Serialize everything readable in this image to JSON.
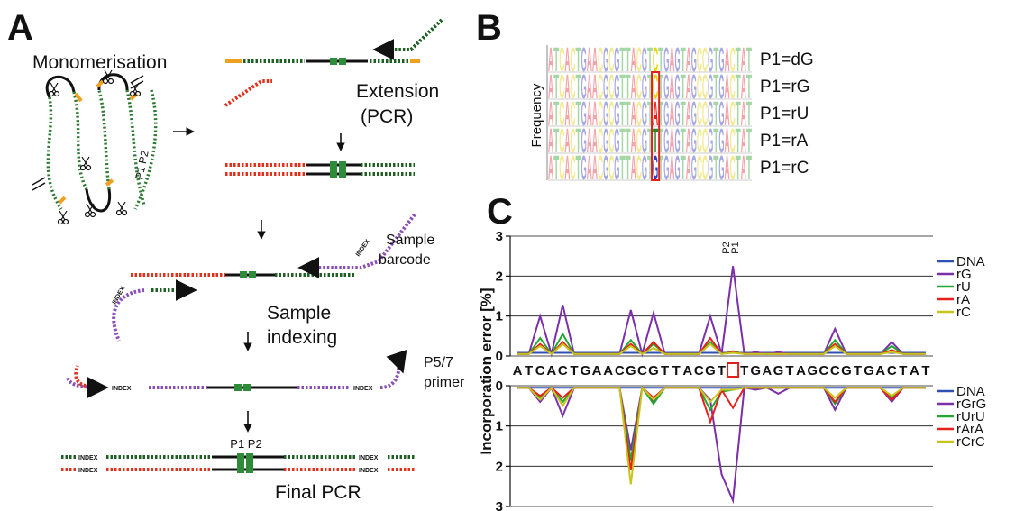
{
  "panel_labels": [
    "A",
    "B",
    "C"
  ],
  "panel_a": {
    "monomerisation": "Monomerisation",
    "p1p2_loop": "P1 P2",
    "extension": "Extension",
    "pcr": "(PCR)",
    "sample_barcode": [
      "Sample",
      "barcode"
    ],
    "index_labels": [
      "INDEX",
      "INDEX",
      "INDEX",
      "INDEX",
      "INDEX",
      "INDEX",
      "INDEX",
      "INDEX"
    ],
    "sample_indexing": [
      "Sample",
      "indexing"
    ],
    "primer": [
      "P5/7",
      "primer"
    ],
    "p1p2_final": "P1 P2",
    "final_pcr": "Final PCR"
  },
  "panel_b": {
    "y_label": "Frequency",
    "rows": [
      {
        "label": "P1=dG",
        "sequence": "ATCACTGAACGCGTTACGTCTGAGTAGCCGTGACTAT"
      },
      {
        "label": "P1=rG",
        "sequence": "ATCACTGAACGCGTTACGTCTGAGTAGCCGTGACTAT"
      },
      {
        "label": "P1=rU",
        "sequence": "ATCACTGAACGCGTTACGTATGAGTAGCCGTGACTAT"
      },
      {
        "label": "P1=rA",
        "sequence": "ATCACTGAACGCGTTACGTTTGAGTAGCCGTGACTAT"
      },
      {
        "label": "P1=rC",
        "sequence": "ATCACTGAACGCGTTACGTGTGAGTAGCCGTGACTAT"
      }
    ]
  },
  "chart_data": [
    {
      "type": "line",
      "ylabel": "Incorporation error [%]",
      "annotations": [
        "P2",
        "P1"
      ],
      "categories": [
        "A",
        "T",
        "C",
        "A",
        "C",
        "T",
        "G",
        "A",
        "A",
        "C",
        "G",
        "C",
        "G",
        "T",
        "T",
        "A",
        "C",
        "G",
        "T",
        null,
        "T",
        "G",
        "A",
        "G",
        "T",
        "A",
        "G",
        "C",
        "C",
        "G",
        "T",
        "G",
        "A",
        "C",
        "T",
        "A",
        "T"
      ],
      "ylim": [
        0,
        3
      ],
      "yticks": [
        0,
        1,
        2,
        3
      ],
      "grid": true,
      "series": [
        {
          "name": "DNA",
          "color": "#2f4fb5",
          "values": [
            0.08,
            0.08,
            0.08,
            0.08,
            0.08,
            0.08,
            0.08,
            0.08,
            0.08,
            0.08,
            0.08,
            0.08,
            0.08,
            0.08,
            0.08,
            0.08,
            0.08,
            0.08,
            0.08,
            0.08,
            0.08,
            0.08,
            0.08,
            0.08,
            0.08,
            0.08,
            0.08,
            0.08,
            0.08,
            0.08,
            0.08,
            0.08,
            0.08,
            0.08,
            0.08,
            0.08,
            0.08
          ]
        },
        {
          "name": "rG",
          "color": "#7b2fa8",
          "values": [
            0.05,
            0.05,
            1.0,
            0.05,
            1.28,
            0.05,
            0.05,
            0.05,
            0.05,
            0.05,
            1.15,
            0.05,
            1.08,
            0.05,
            0.05,
            0.05,
            0.05,
            1.0,
            0.05,
            2.25,
            0.05,
            0.1,
            0.05,
            0.1,
            0.05,
            0.05,
            0.05,
            0.05,
            0.68,
            0.05,
            0.05,
            0.05,
            0.05,
            0.35,
            0.05,
            0.05,
            0.05
          ]
        },
        {
          "name": "rU",
          "color": "#22a830",
          "values": [
            0.05,
            0.05,
            0.45,
            0.05,
            0.55,
            0.05,
            0.05,
            0.05,
            0.05,
            0.05,
            0.4,
            0.05,
            0.3,
            0.05,
            0.05,
            0.05,
            0.05,
            0.35,
            0.05,
            0.12,
            0.05,
            0.05,
            0.05,
            0.05,
            0.05,
            0.05,
            0.05,
            0.05,
            0.4,
            0.05,
            0.05,
            0.05,
            0.05,
            0.25,
            0.05,
            0.05,
            0.05
          ]
        },
        {
          "name": "rA",
          "color": "#e8201c",
          "values": [
            0.05,
            0.05,
            0.3,
            0.05,
            0.35,
            0.05,
            0.05,
            0.05,
            0.05,
            0.05,
            0.3,
            0.05,
            0.35,
            0.05,
            0.05,
            0.05,
            0.05,
            0.45,
            0.05,
            0.1,
            0.05,
            0.05,
            0.05,
            0.05,
            0.05,
            0.05,
            0.05,
            0.05,
            0.3,
            0.05,
            0.05,
            0.05,
            0.05,
            0.15,
            0.05,
            0.05,
            0.05
          ]
        },
        {
          "name": "rC",
          "color": "#c8c41e",
          "values": [
            0.05,
            0.05,
            0.25,
            0.05,
            0.3,
            0.05,
            0.05,
            0.05,
            0.05,
            0.05,
            0.25,
            0.05,
            0.2,
            0.05,
            0.05,
            0.05,
            0.05,
            0.3,
            0.05,
            0.08,
            0.05,
            0.05,
            0.05,
            0.05,
            0.05,
            0.05,
            0.05,
            0.05,
            0.25,
            0.05,
            0.05,
            0.05,
            0.05,
            0.1,
            0.05,
            0.05,
            0.05
          ]
        }
      ]
    },
    {
      "type": "line",
      "inverted": true,
      "ylim": [
        0,
        3
      ],
      "yticks": [
        0,
        1,
        2,
        3
      ],
      "grid": true,
      "series": [
        {
          "name": "DNA",
          "color": "#2f4fb5",
          "values": [
            0.05,
            0.05,
            0.05,
            0.05,
            0.05,
            0.05,
            0.05,
            0.05,
            0.05,
            0.05,
            0.05,
            0.05,
            0.05,
            0.05,
            0.05,
            0.05,
            0.05,
            0.05,
            0.05,
            0.05,
            0.05,
            0.05,
            0.05,
            0.05,
            0.05,
            0.05,
            0.05,
            0.05,
            0.05,
            0.05,
            0.05,
            0.05,
            0.05,
            0.05,
            0.05,
            0.05,
            0.05
          ]
        },
        {
          "name": "rGrG",
          "color": "#7b2fa8",
          "values": [
            0.05,
            0.05,
            0.4,
            0.05,
            0.75,
            0.05,
            0.05,
            0.05,
            0.05,
            0.05,
            1.6,
            0.05,
            0.4,
            0.05,
            0.05,
            0.05,
            0.05,
            0.35,
            2.2,
            2.85,
            0.05,
            0.1,
            0.05,
            0.2,
            0.05,
            0.05,
            0.05,
            0.05,
            0.6,
            0.05,
            0.05,
            0.05,
            0.05,
            0.4,
            0.05,
            0.05,
            0.05
          ]
        },
        {
          "name": "rUrU",
          "color": "#22a830",
          "values": [
            0.05,
            0.05,
            0.3,
            0.05,
            0.4,
            0.05,
            0.05,
            0.05,
            0.05,
            0.05,
            1.85,
            0.05,
            0.45,
            0.05,
            0.05,
            0.05,
            0.05,
            0.6,
            0.15,
            0.1,
            0.05,
            0.05,
            0.05,
            0.05,
            0.05,
            0.05,
            0.05,
            0.05,
            0.45,
            0.05,
            0.05,
            0.05,
            0.05,
            0.3,
            0.05,
            0.05,
            0.05
          ]
        },
        {
          "name": "rArA",
          "color": "#e8201c",
          "values": [
            0.05,
            0.05,
            0.25,
            0.05,
            0.3,
            0.05,
            0.05,
            0.05,
            0.05,
            0.05,
            2.1,
            0.05,
            0.3,
            0.05,
            0.05,
            0.05,
            0.05,
            0.9,
            0.1,
            0.55,
            0.05,
            0.05,
            0.05,
            0.05,
            0.05,
            0.05,
            0.05,
            0.05,
            0.4,
            0.05,
            0.05,
            0.05,
            0.05,
            0.35,
            0.05,
            0.05,
            0.05
          ]
        },
        {
          "name": "rCrC",
          "color": "#c8c41e",
          "values": [
            0.05,
            0.05,
            0.35,
            0.05,
            0.5,
            0.05,
            0.05,
            0.05,
            0.05,
            0.05,
            2.45,
            0.05,
            0.35,
            0.05,
            0.05,
            0.05,
            0.05,
            0.4,
            0.1,
            0.1,
            0.05,
            0.05,
            0.05,
            0.05,
            0.05,
            0.05,
            0.05,
            0.05,
            0.3,
            0.05,
            0.05,
            0.05,
            0.05,
            0.25,
            0.05,
            0.05,
            0.05
          ]
        }
      ]
    }
  ]
}
